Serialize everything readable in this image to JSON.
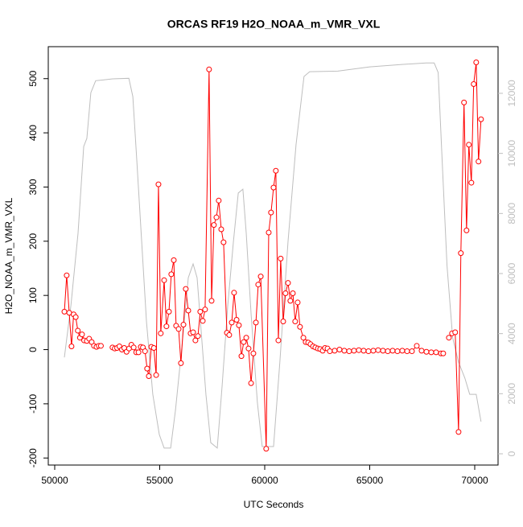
{
  "chart_data": {
    "type": "line",
    "title": "ORCAS RF19 H2O_NOAA_m_VMR_VXL",
    "x_label": "UTC Seconds",
    "y_label": "H2O_NOAA_m_VMR_VXL",
    "xlim": [
      49693,
      71111
    ],
    "xticks": [
      50000,
      55000,
      60000,
      65000,
      70000
    ],
    "ylim": [
      -213,
      559
    ],
    "yticks": [
      -200,
      -100,
      0,
      100,
      200,
      300,
      400,
      500
    ],
    "y2lim": [
      -375,
      13553
    ],
    "y2ticks": [
      0,
      2000,
      4000,
      6000,
      8000,
      10000,
      12000
    ],
    "series": [
      {
        "color": "#bebebe",
        "axis": "y2",
        "marker": false,
        "x": [
          50460,
          50770,
          51110,
          51380,
          51530,
          51720,
          51950,
          52760,
          53530,
          53720,
          53910,
          54140,
          54370,
          54670,
          54980,
          55210,
          55520,
          55750,
          56060,
          56360,
          56590,
          56780,
          56970,
          57200,
          57430,
          57740,
          57970,
          58240,
          58510,
          58740,
          58960,
          59120,
          59350,
          59650,
          59880,
          60420,
          60720,
          61110,
          61490,
          61870,
          62140,
          63480,
          65000,
          66530,
          67680,
          68070,
          68260,
          68450,
          68680,
          68950,
          69230,
          69530,
          69760,
          70070,
          70300
        ],
        "values": [
          3210,
          4930,
          7340,
          10230,
          10500,
          12020,
          12420,
          12480,
          12500,
          11890,
          9750,
          7070,
          4390,
          1980,
          640,
          190,
          190,
          1450,
          3590,
          5860,
          6320,
          5860,
          4120,
          1980,
          370,
          190,
          2250,
          4930,
          7070,
          8680,
          8810,
          7340,
          4660,
          1710,
          240,
          240,
          3050,
          7070,
          10280,
          12560,
          12720,
          12740,
          12880,
          12960,
          13010,
          13010,
          12690,
          9750,
          6270,
          3860,
          3050,
          2520,
          1980,
          1980,
          1070
        ]
      },
      {
        "color": "#ff0000",
        "marker": true,
        "x": [
          50460,
          50570,
          50690,
          50800,
          50900,
          51000,
          51100,
          51200,
          51300,
          51400,
          51530,
          51640,
          51760,
          51870,
          51990,
          52100,
          52200,
          52450,
          52750,
          52860,
          52970,
          53080,
          53200,
          53310,
          53420,
          53540,
          53650,
          53760,
          53880,
          53990,
          54100,
          54200,
          54300,
          54400,
          54480,
          54600,
          54720,
          54830,
          54940,
          55050,
          55210,
          55320,
          55440,
          55550,
          55670,
          55780,
          55900,
          56010,
          56130,
          56240,
          56360,
          56470,
          56590,
          56700,
          56820,
          56930,
          57050,
          57160,
          57350,
          57470,
          57580,
          57700,
          57810,
          57930,
          58040,
          58200,
          58310,
          58430,
          58540,
          58660,
          58770,
          58890,
          59000,
          59120,
          59230,
          59350,
          59460,
          59580,
          59690,
          59810,
          60070,
          60190,
          60300,
          60420,
          60530,
          60650,
          60760,
          60880,
          60990,
          61110,
          61220,
          61340,
          61450,
          61570,
          61680,
          61840,
          61950,
          62070,
          62180,
          62300,
          62410,
          62530,
          62640,
          62760,
          62870,
          62990,
          63100,
          63330,
          63560,
          63790,
          64020,
          64250,
          64480,
          64710,
          64940,
          65170,
          65400,
          65630,
          65860,
          66090,
          66320,
          66550,
          66780,
          67010,
          67240,
          67470,
          67700,
          67930,
          68160,
          68390,
          68500,
          68600,
          68770,
          68920,
          69070,
          69230,
          69340,
          69490,
          69610,
          69720,
          69840,
          69950,
          70070,
          70180,
          70300
        ],
        "values": [
          70,
          137,
          68,
          6,
          65,
          60,
          35,
          22,
          28,
          17,
          16,
          20,
          14,
          7,
          5,
          7,
          7,
          null,
          4,
          2,
          3,
          6,
          0,
          3,
          -4,
          2,
          9,
          4,
          -5,
          -5,
          5,
          4,
          -3,
          -35,
          -49,
          5,
          3,
          -47,
          305,
          30,
          128,
          43,
          70,
          139,
          165,
          44,
          38,
          -25,
          46,
          112,
          72,
          30,
          32,
          17,
          25,
          70,
          53,
          74,
          517,
          90,
          230,
          244,
          275,
          222,
          198,
          31,
          27,
          50,
          105,
          55,
          45,
          -12,
          14,
          22,
          2,
          -62,
          -7,
          50,
          120,
          135,
          -183,
          216,
          253,
          299,
          330,
          17,
          168,
          52,
          104,
          123,
          90,
          104,
          52,
          87,
          42,
          22,
          14,
          13,
          10,
          6,
          4,
          2,
          1,
          -2,
          3,
          2,
          -3,
          -2,
          0,
          -2,
          -3,
          -2,
          -1,
          -2,
          -3,
          -2,
          -1,
          -2,
          -3,
          -2,
          -3,
          -2,
          -3,
          -3,
          7,
          -2,
          -4,
          -5,
          -5,
          -7,
          -7,
          null,
          22,
          30,
          32,
          -152,
          178,
          456,
          220,
          378,
          308,
          490,
          530,
          347,
          425
        ]
      }
    ]
  }
}
